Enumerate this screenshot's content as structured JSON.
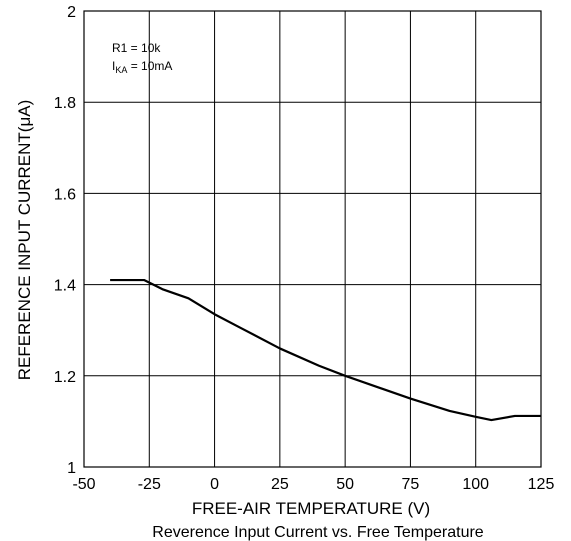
{
  "chart_data": {
    "type": "line",
    "title": "Reverence Input Current vs. Free Temperature",
    "xlabel": "FREE-AIR TEMPERATURE (V)",
    "ylabel": "REFERENCE INPUT CURRENT(μA)",
    "xlim": [
      -50,
      125
    ],
    "ylim": [
      1,
      2
    ],
    "xticks": [
      -50,
      -25,
      0,
      25,
      50,
      75,
      100,
      125
    ],
    "yticks": [
      1,
      1.2,
      1.4,
      1.6,
      1.8,
      2
    ],
    "ytick_labels": [
      "1",
      "1.2",
      "1.4",
      "1.6",
      "1.8",
      "2"
    ],
    "grid": true,
    "line_color": "#000000",
    "annotation": {
      "line1": "R1 = 10k",
      "line2_main": "I",
      "line2_sub": "KA",
      "line2_rest": " = 10mA"
    },
    "series": [
      {
        "x": [
          -40,
          -27,
          -20,
          -10,
          0,
          10,
          25,
          40,
          50,
          60,
          75,
          90,
          100,
          106,
          115,
          125
        ],
        "y": [
          1.41,
          1.41,
          1.39,
          1.37,
          1.335,
          1.305,
          1.26,
          1.222,
          1.2,
          1.18,
          1.15,
          1.123,
          1.11,
          1.103,
          1.112,
          1.112
        ]
      }
    ]
  }
}
